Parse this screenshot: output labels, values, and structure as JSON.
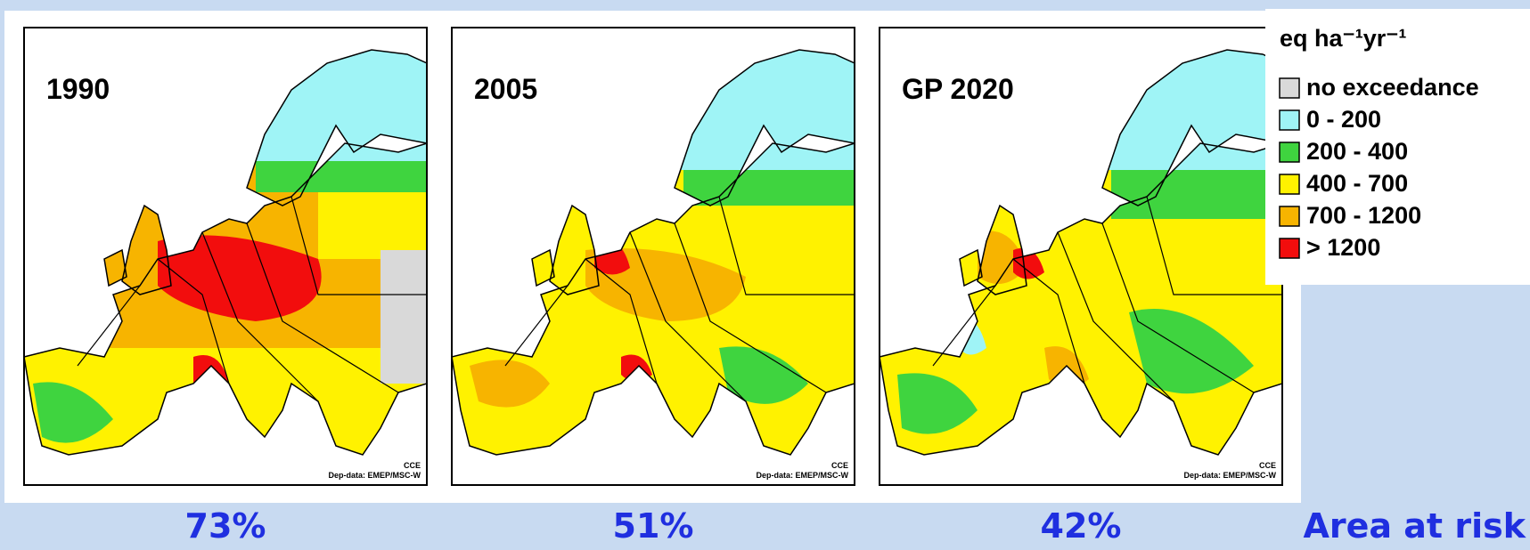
{
  "panels": [
    {
      "label": "1990",
      "percent": "73%"
    },
    {
      "label": "2005",
      "percent": "51%"
    },
    {
      "label": "GP 2020",
      "percent": "42%"
    }
  ],
  "credits": {
    "source": "Dep-data: EMEP/MSC-W",
    "agency": "CCE"
  },
  "legend": {
    "title": "eq ha⁻¹yr⁻¹",
    "items": [
      {
        "label": "no exceedance",
        "color": "#d9d9d9"
      },
      {
        "label": "0 - 200",
        "color": "#9ff4f6"
      },
      {
        "label": "200 - 400",
        "color": "#3fd43f"
      },
      {
        "label": "400 - 700",
        "color": "#fff200"
      },
      {
        "label": "700 - 1200",
        "color": "#f7b400"
      },
      {
        "label": "> 1200",
        "color": "#f20d0d"
      }
    ]
  },
  "footer": "Area at risk"
}
